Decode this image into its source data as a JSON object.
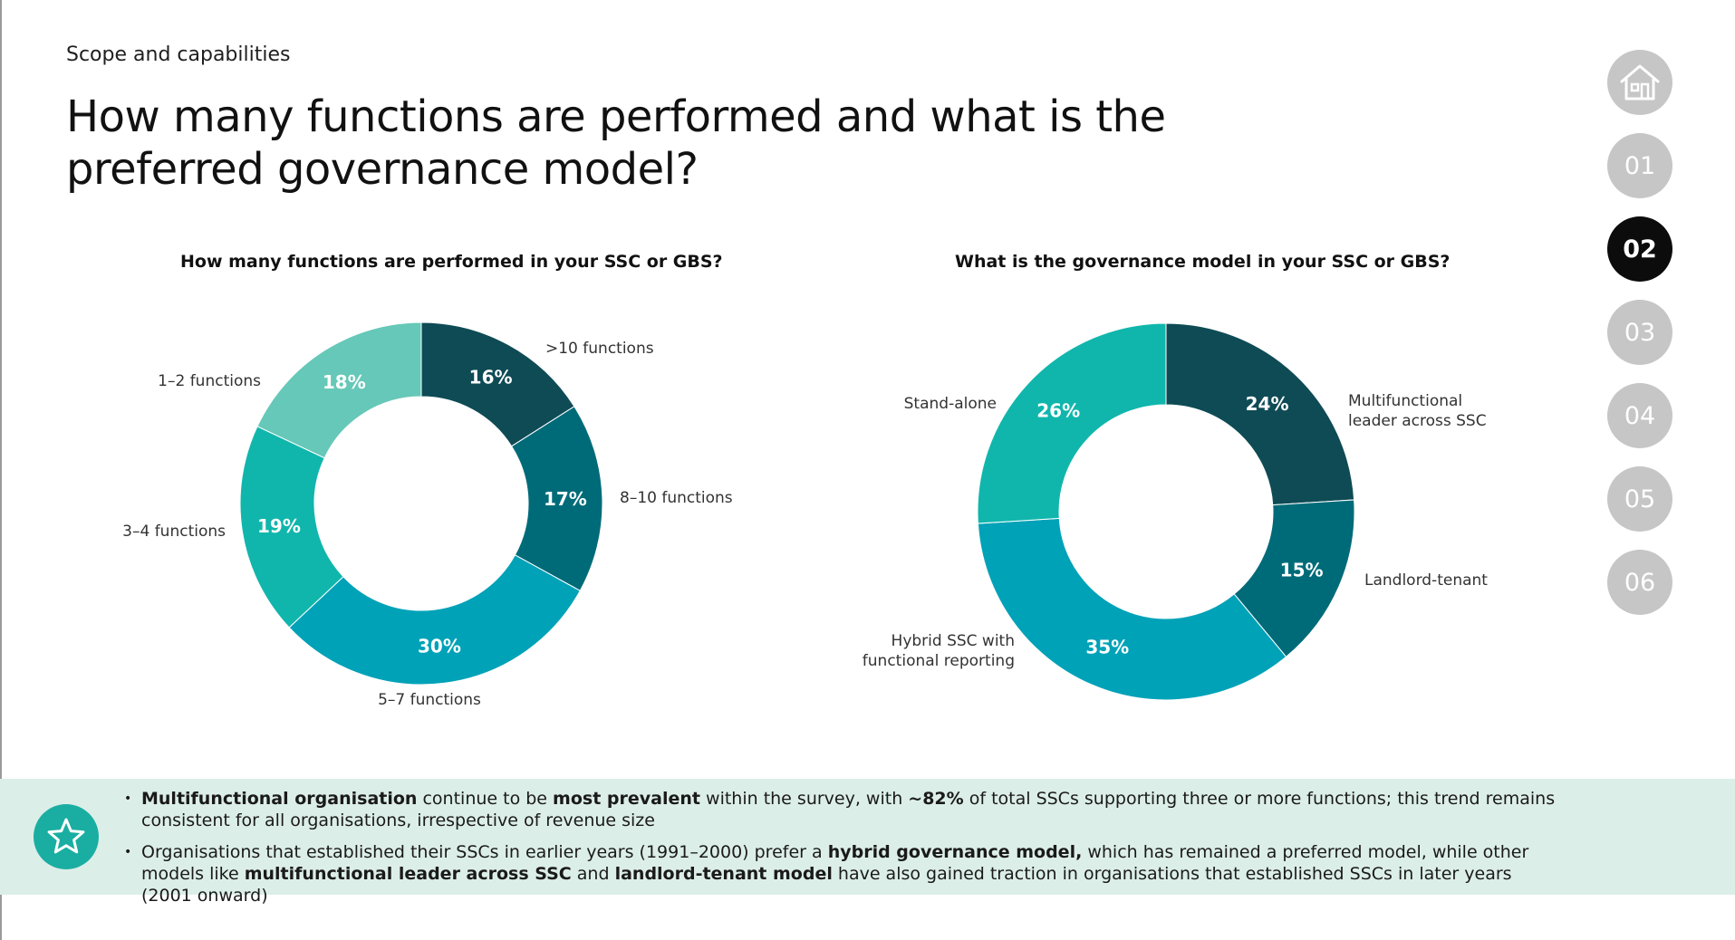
{
  "header": {
    "eyebrow": "Scope and capabilities",
    "title": "How many functions are performed and what is the preferred governance model?"
  },
  "nav": {
    "home_icon": "home-icon",
    "items": [
      {
        "label": "01",
        "active": false
      },
      {
        "label": "02",
        "active": true
      },
      {
        "label": "03",
        "active": false
      },
      {
        "label": "04",
        "active": false
      },
      {
        "label": "05",
        "active": false
      },
      {
        "label": "06",
        "active": false
      }
    ]
  },
  "chart_data": [
    {
      "type": "pie",
      "subtype": "donut",
      "title": "How many functions are performed in your SSC or GBS?",
      "slices": [
        {
          "label": ">10 functions",
          "value": 16,
          "value_label": "16%",
          "color": "#0e4b55"
        },
        {
          "label": "8–10 functions",
          "value": 17,
          "value_label": "17%",
          "color": "#006b78"
        },
        {
          "label": "5–7 functions",
          "value": 30,
          "value_label": "30%",
          "color": "#00a2b8"
        },
        {
          "label": "3–4 functions",
          "value": 19,
          "value_label": "19%",
          "color": "#10b6ac"
        },
        {
          "label": "1–2 functions",
          "value": 18,
          "value_label": "18%",
          "color": "#66c8b8"
        }
      ]
    },
    {
      "type": "pie",
      "subtype": "donut",
      "title": "What is the governance model in your SSC or GBS?",
      "slices": [
        {
          "label": "Multifunctional leader across SSC",
          "value": 24,
          "value_label": "24%",
          "color": "#0e4b55"
        },
        {
          "label": "Landlord-tenant",
          "value": 15,
          "value_label": "15%",
          "color": "#006b78"
        },
        {
          "label": "Hybrid SSC with functional reporting",
          "value": 35,
          "value_label": "35%",
          "color": "#00a2b8"
        },
        {
          "label": "Stand-alone",
          "value": 26,
          "value_label": "26%",
          "color": "#10b6ac"
        }
      ]
    }
  ],
  "callout": {
    "icon": "star-icon",
    "bullets": [
      [
        {
          "t": "Multifunctional organisation",
          "b": true
        },
        {
          "t": " continue to be ",
          "b": false
        },
        {
          "t": "most prevalent",
          "b": true
        },
        {
          "t": " within the survey, with ",
          "b": false
        },
        {
          "t": "~82%",
          "b": true
        },
        {
          "t": " of total SSCs supporting three or more functions; this trend remains consistent for all organisations, irrespective of revenue size",
          "b": false
        }
      ],
      [
        {
          "t": "Organisations that established their SSCs in earlier years (1991–2000) prefer a ",
          "b": false
        },
        {
          "t": "hybrid governance model,",
          "b": true
        },
        {
          "t": " which has remained a preferred model, while other models like ",
          "b": false
        },
        {
          "t": "multifunctional leader across SSC",
          "b": true
        },
        {
          "t": " and ",
          "b": false
        },
        {
          "t": "landlord-tenant model",
          "b": true
        },
        {
          "t": " have also gained traction in organisations that established SSCs in later years (2001 onward)",
          "b": false
        }
      ]
    ]
  }
}
